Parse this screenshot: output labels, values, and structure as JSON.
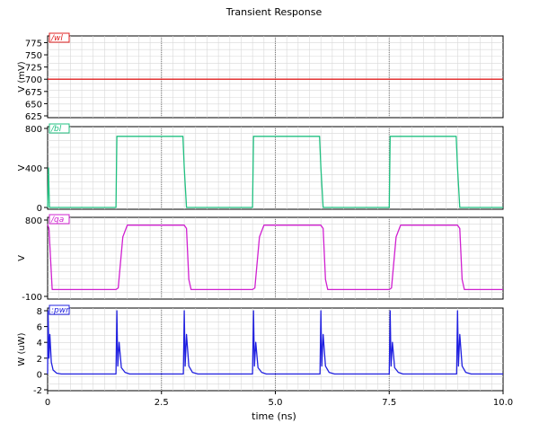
{
  "chart_data": {
    "type": "line",
    "title": "Transient Response",
    "xlabel": "time (ns)",
    "xlim": [
      0,
      10
    ],
    "x_ticks": [
      "0",
      "2.5",
      "5.0",
      "7.5",
      "10.0"
    ],
    "grid": true,
    "panels": [
      {
        "name": "wl",
        "tag": "/wl",
        "color": "#e02020",
        "ylabel": "V (mV)",
        "ylim": [
          625,
          785
        ],
        "y_ticks": [
          "625",
          "650",
          "675",
          "700",
          "725",
          "750",
          "775"
        ],
        "y_tick_values": [
          625,
          650,
          675,
          700,
          725,
          750,
          775
        ],
        "series": [
          {
            "x": [
              0,
              10
            ],
            "y": [
              700,
              700
            ]
          }
        ]
      },
      {
        "name": "bl",
        "tag": "/bl",
        "color": "#20c080",
        "ylabel": "V",
        "ylim": [
          0,
          800
        ],
        "y_ticks": [
          "0",
          "400",
          "800"
        ],
        "y_tick_values": [
          0,
          400,
          800
        ],
        "series": [
          {
            "x": [
              0,
              0.02,
              0.04,
              1.5,
              1.52,
              1.54,
              2.97,
              3.0,
              3.05,
              4.5,
              4.52,
              4.54,
              5.97,
              6.0,
              6.05,
              7.5,
              7.52,
              7.54,
              8.97,
              9.0,
              9.05,
              10
            ],
            "y": [
              0,
              400,
              0,
              0,
              720,
              720,
              720,
              400,
              0,
              0,
              720,
              720,
              720,
              400,
              0,
              0,
              720,
              720,
              720,
              400,
              0,
              0
            ]
          }
        ]
      },
      {
        "name": "qa",
        "tag": "/qa",
        "color": "#d020d0",
        "ylabel": "V",
        "ylim": [
          -100,
          800
        ],
        "y_ticks": [
          "-100",
          "800"
        ],
        "y_tick_values": [
          -100,
          800
        ],
        "series": [
          {
            "x": [
              0,
              0.03,
              0.1,
              1.5,
              1.55,
              1.65,
              1.75,
              3.0,
              3.05,
              3.1,
              3.15,
              4.5,
              4.55,
              4.65,
              4.75,
              6.0,
              6.05,
              6.1,
              6.15,
              7.5,
              7.55,
              7.65,
              7.75,
              9.0,
              9.05,
              9.1,
              9.15,
              10
            ],
            "y": [
              750,
              700,
              -20,
              -20,
              0,
              600,
              740,
              740,
              700,
              100,
              -20,
              -20,
              0,
              600,
              740,
              740,
              700,
              100,
              -20,
              -20,
              0,
              600,
              740,
              740,
              700,
              100,
              -20,
              -20
            ]
          }
        ]
      },
      {
        "name": "pwr",
        "tag": ":pwr",
        "color": "#2020e0",
        "ylabel": "W (uW)",
        "ylim": [
          -2,
          8
        ],
        "y_ticks": [
          "-2",
          "0",
          "2",
          "4",
          "6",
          "8"
        ],
        "y_tick_values": [
          -2,
          0,
          2,
          4,
          6,
          8
        ],
        "series": [
          {
            "x": [
              0,
              0.01,
              0.03,
              0.05,
              0.08,
              0.12,
              0.2,
              0.3,
              1.5,
              1.52,
              1.54,
              1.57,
              1.62,
              1.7,
              1.8,
              2.98,
              3.0,
              3.02,
              3.05,
              3.1,
              3.18,
              3.3,
              4.5,
              4.52,
              4.54,
              4.57,
              4.62,
              4.7,
              4.8,
              5.98,
              6.0,
              6.02,
              6.05,
              6.1,
              6.18,
              6.3,
              7.5,
              7.52,
              7.54,
              7.57,
              7.62,
              7.7,
              7.8,
              8.98,
              9.0,
              9.02,
              9.05,
              9.1,
              9.18,
              9.3,
              10
            ],
            "y": [
              0,
              8,
              2,
              5,
              1.5,
              0.5,
              0.1,
              0,
              0,
              8,
              1,
              4,
              0.8,
              0.2,
              0,
              0,
              8,
              1,
              5,
              1,
              0.2,
              0,
              0,
              8,
              1,
              4,
              0.8,
              0.2,
              0,
              0,
              8,
              1,
              5,
              1,
              0.2,
              0,
              0,
              8,
              1,
              4,
              0.8,
              0.2,
              0,
              0,
              8,
              1,
              5,
              1,
              0.2,
              0,
              0
            ]
          }
        ]
      }
    ]
  }
}
